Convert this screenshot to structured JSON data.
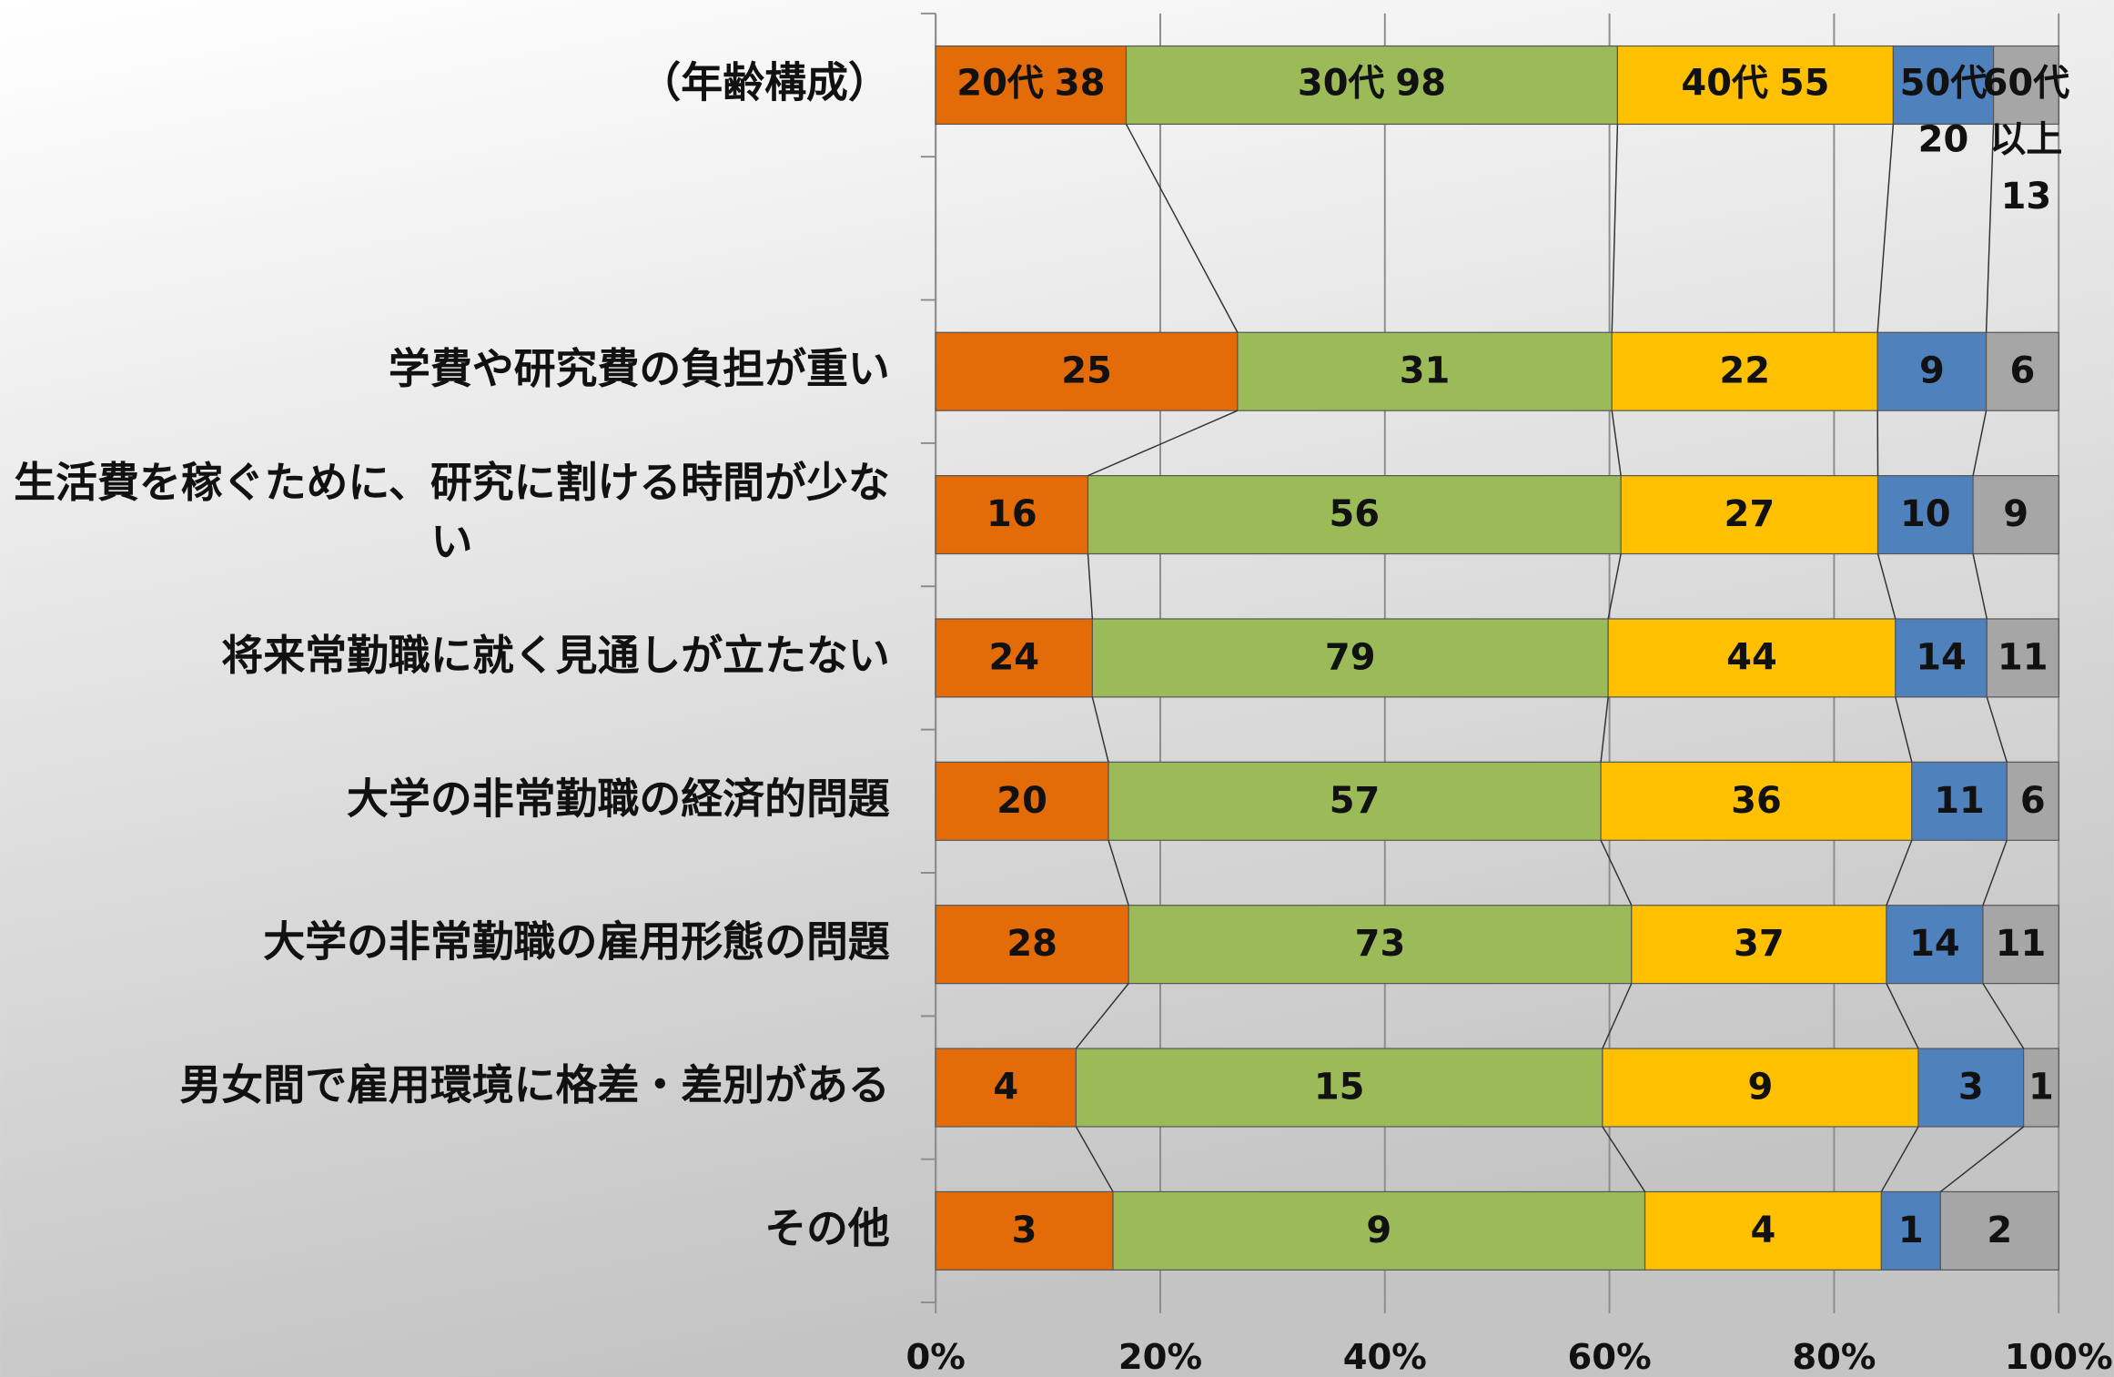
{
  "chart_data": {
    "type": "stacked_bar_100",
    "categories": [
      "（年齢構成）",
      null,
      "学費や研究費の負担が重い",
      "生活費を稼ぐために、研究に割ける時間が少ない",
      "将来常勤職に就く見通しが立たない",
      "大学の非常勤職の経済的問題",
      "大学の非常勤職の雇用形態の問題",
      "男女間で雇用環境に格差・差別がある",
      "その他"
    ],
    "series": [
      {
        "name": "20代",
        "color": "#e36c09",
        "values": [
          38,
          null,
          25,
          16,
          24,
          20,
          28,
          4,
          3
        ]
      },
      {
        "name": "30代",
        "color": "#9bbb59",
        "values": [
          98,
          null,
          31,
          56,
          79,
          57,
          73,
          15,
          9
        ]
      },
      {
        "name": "40代",
        "color": "#ffc000",
        "values": [
          55,
          null,
          22,
          27,
          44,
          36,
          37,
          9,
          4
        ]
      },
      {
        "name": "50代",
        "color": "#4f81bd",
        "values": [
          20,
          null,
          9,
          10,
          14,
          11,
          14,
          3,
          1
        ]
      },
      {
        "name": "60代以上",
        "color": "#a6a6a6",
        "values": [
          13,
          null,
          6,
          9,
          11,
          6,
          11,
          1,
          2
        ]
      }
    ],
    "xlim": [
      0,
      100
    ],
    "xticks": [
      {
        "value": 0,
        "label": "0%"
      },
      {
        "value": 20,
        "label": "20%"
      },
      {
        "value": 40,
        "label": "40%"
      },
      {
        "value": 60,
        "label": "60%"
      },
      {
        "value": 80,
        "label": "80%"
      },
      {
        "value": 100,
        "label": "100%"
      }
    ],
    "grid": true
  }
}
